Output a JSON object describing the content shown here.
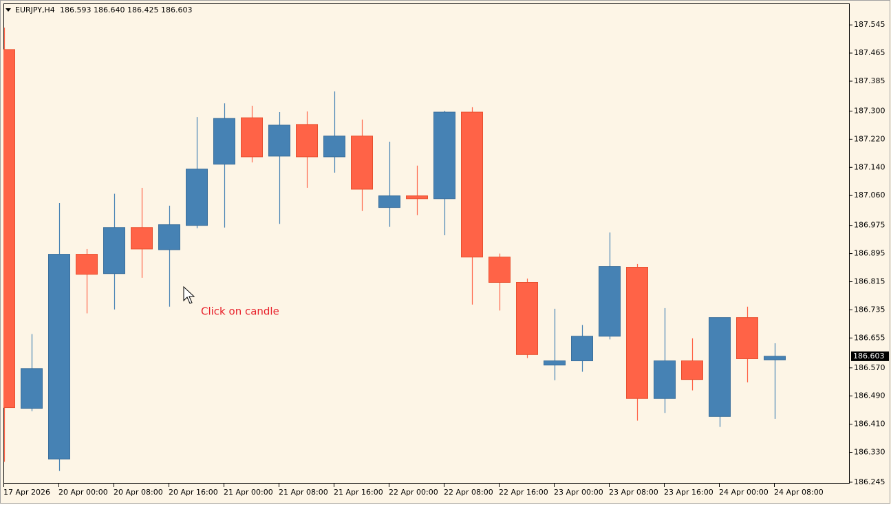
{
  "chart_data": {
    "type": "candlestick",
    "header": {
      "symbol": "EURJPY,H4",
      "quote": "186.593 186.640 186.425 186.603"
    },
    "annotation": "Click on candle",
    "current_price": 186.603,
    "up_color": "#4682b4",
    "down_color": "#ff6347",
    "categories": [
      "17 Apr 2026",
      null,
      "20 Apr 00:00",
      null,
      "20 Apr 08:00",
      null,
      "20 Apr 16:00",
      null,
      "21 Apr 00:00",
      null,
      "21 Apr 08:00",
      null,
      "21 Apr 16:00",
      null,
      "22 Apr 00:00",
      null,
      "22 Apr 08:00",
      null,
      "22 Apr 16:00",
      null,
      "23 Apr 00:00",
      null,
      "23 Apr 08:00",
      null,
      "23 Apr 16:00",
      null,
      "24 Apr 00:00",
      null,
      "24 Apr 08:00"
    ],
    "open": [
      187.475,
      186.455,
      186.311,
      186.893,
      186.838,
      186.969,
      186.906,
      186.975,
      187.149,
      187.281,
      187.172,
      187.262,
      187.17,
      187.229,
      187.026,
      187.059,
      187.051,
      187.297,
      186.885,
      186.813,
      186.578,
      186.59,
      186.66,
      186.856,
      186.483,
      186.59,
      186.432,
      186.713,
      186.593
    ],
    "high": [
      187.537,
      186.666,
      187.039,
      186.908,
      187.065,
      187.082,
      187.031,
      187.283,
      187.322,
      187.315,
      187.297,
      187.299,
      187.356,
      187.276,
      187.213,
      187.145,
      187.301,
      187.311,
      186.895,
      186.824,
      186.738,
      186.692,
      186.955,
      186.865,
      186.74,
      186.654,
      186.713,
      186.744,
      186.64
    ],
    "low": [
      186.303,
      186.447,
      186.277,
      186.725,
      186.736,
      186.826,
      186.744,
      186.967,
      186.969,
      187.154,
      186.979,
      187.082,
      187.125,
      187.016,
      186.971,
      187.004,
      186.947,
      186.75,
      186.733,
      186.598,
      186.535,
      186.559,
      186.651,
      186.42,
      186.442,
      186.506,
      186.402,
      186.529,
      186.425
    ],
    "close": [
      186.457,
      186.568,
      186.893,
      186.836,
      186.969,
      186.908,
      186.977,
      187.135,
      187.279,
      187.17,
      187.26,
      187.17,
      187.229,
      187.078,
      187.059,
      187.051,
      187.297,
      186.885,
      186.813,
      186.608,
      186.59,
      186.66,
      186.858,
      186.483,
      186.59,
      186.537,
      186.713,
      186.596,
      186.603
    ],
    "ylim": [
      186.241,
      187.606
    ],
    "yticks": [
      187.545,
      187.465,
      187.385,
      {
        "value": 187.3,
        "label": "187.300"
      },
      {
        "value": 187.22,
        "label": "187.220"
      },
      {
        "value": 187.14,
        "label": "187.140"
      },
      {
        "value": 187.06,
        "label": "187.060"
      },
      186.975,
      186.895,
      186.815,
      186.735,
      186.655,
      {
        "value": 186.57,
        "label": "186.570"
      },
      {
        "value": 186.49,
        "label": "186.490"
      },
      {
        "value": 186.41,
        "label": "186.410"
      },
      {
        "value": 186.33,
        "label": "186.330"
      },
      186.245
    ]
  }
}
